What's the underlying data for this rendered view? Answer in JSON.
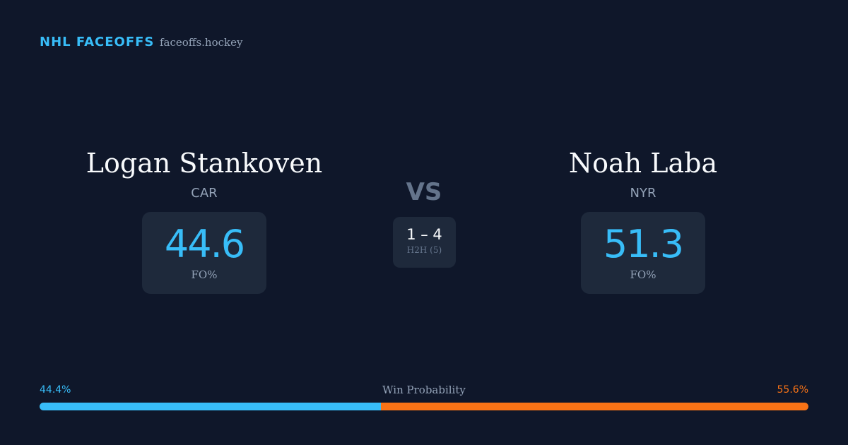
{
  "header": {
    "brand": "NHL FACEOFFS",
    "site": "faceoffs.hockey"
  },
  "players": [
    {
      "name": "Logan Stankoven",
      "team": "CAR",
      "fo_pct": 44.6,
      "fo_label": "FO%"
    },
    {
      "name": "Noah Laba",
      "team": "NYR",
      "fo_pct": 51.3,
      "fo_label": "FO%"
    }
  ],
  "versus": {
    "label": "VS",
    "h2h_score": "1 – 4",
    "h2h_label": "H2H (5)"
  },
  "win_probability": {
    "title": "Win Probability",
    "values": [
      44.4,
      55.6
    ],
    "value_labels": [
      "44.4%",
      "55.6%"
    ],
    "colors": [
      "#38bdf8",
      "#f97316"
    ]
  }
}
